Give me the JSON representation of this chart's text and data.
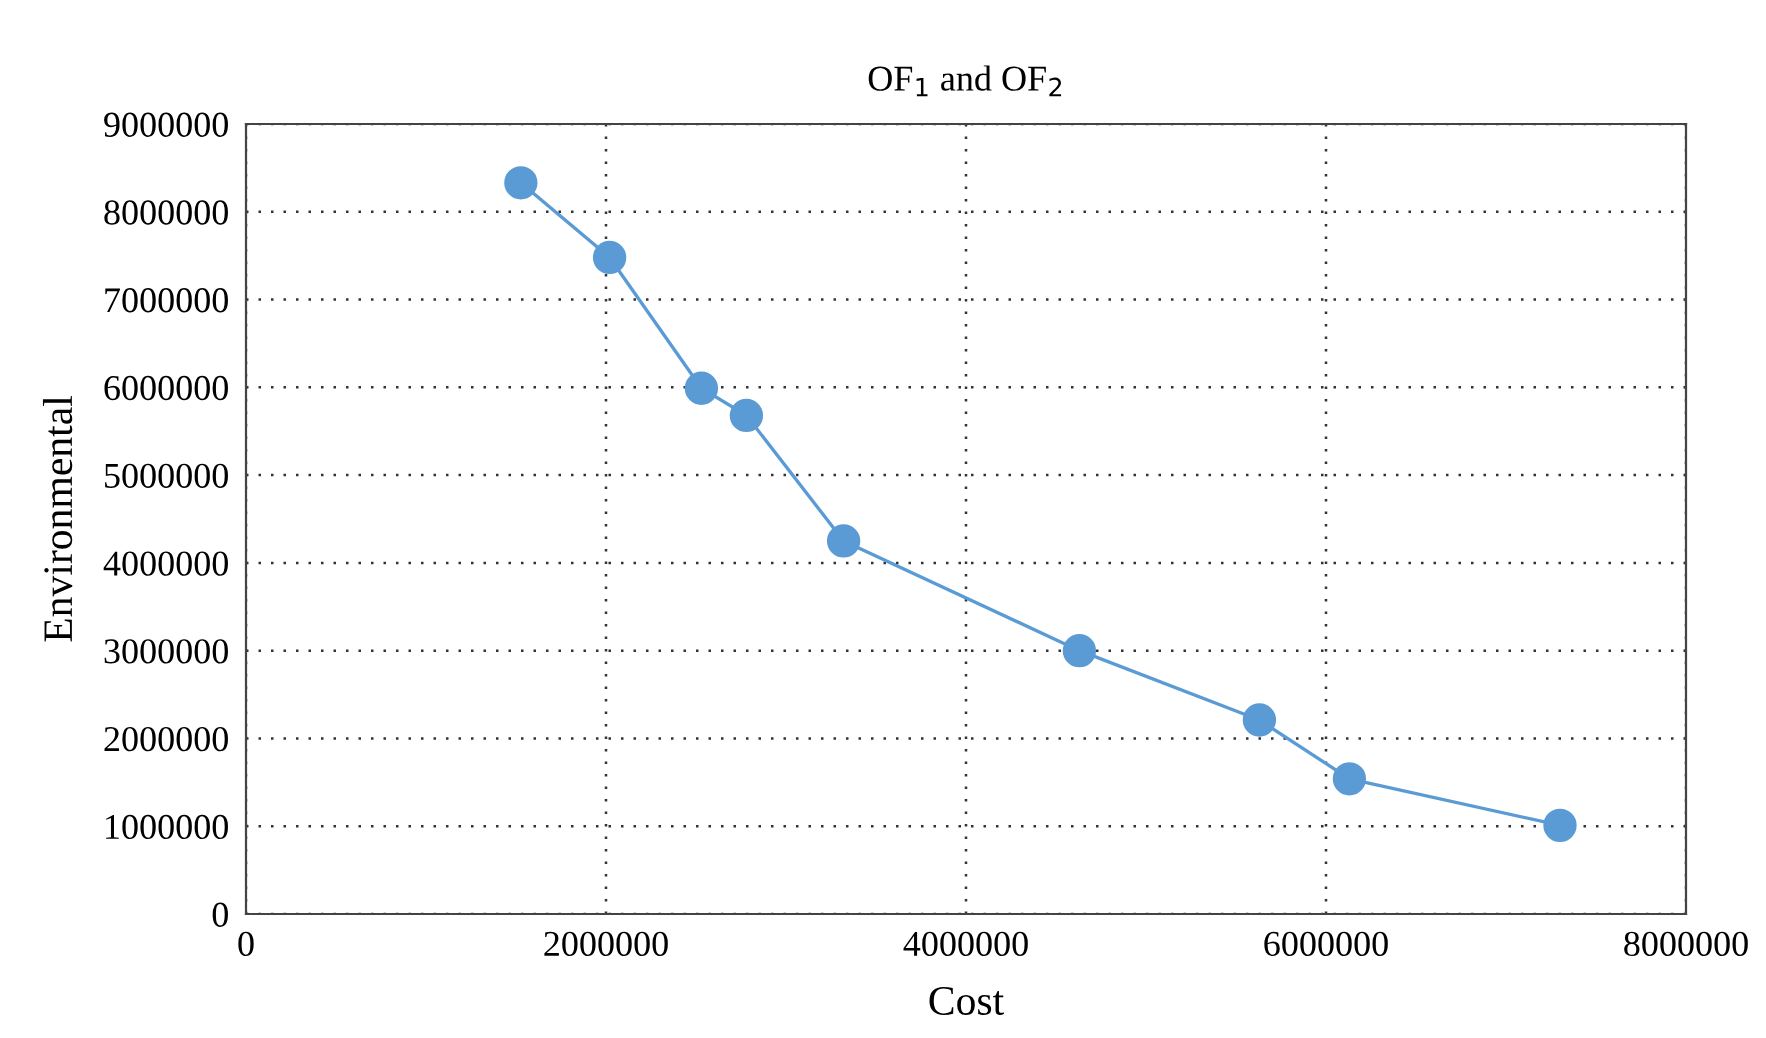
{
  "chart_data": {
    "type": "line",
    "title": "OF$_{1}$ and OF$_{2}$",
    "xlabel": "Cost",
    "ylabel": "Environmental",
    "x": [
      1527000,
      2020000,
      2530000,
      2780000,
      3320000,
      4630000,
      5630000,
      6130000,
      7300000
    ],
    "series": [
      {
        "color": "#5b9bd5",
        "values": [
          8330000,
          7480000,
          5990000,
          5680000,
          4250000,
          3000000,
          2210000,
          1540000,
          1010000
        ]
      }
    ],
    "xlim": [
      0,
      8000000
    ],
    "xticks": [
      0,
      2000000,
      4000000,
      6000000,
      8000000
    ],
    "ylim": [
      0,
      9000000
    ],
    "yticks": [
      0,
      1000000,
      2000000,
      3000000,
      4000000,
      5000000,
      6000000,
      7000000,
      8000000,
      9000000
    ],
    "grid": true,
    "marker": "circle",
    "line_style": "solid",
    "legend": false
  }
}
